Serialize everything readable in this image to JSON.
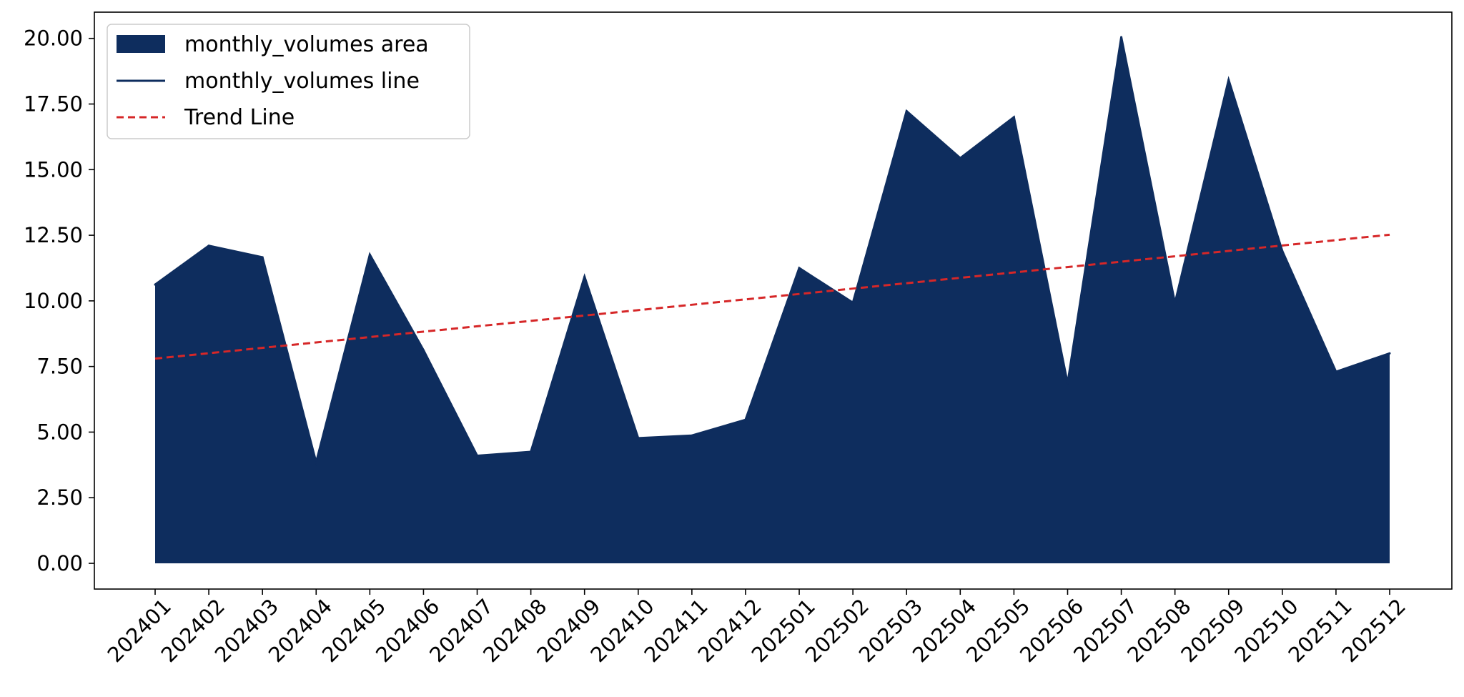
{
  "chart_data": {
    "type": "area",
    "categories": [
      "202401",
      "202402",
      "202403",
      "202404",
      "202405",
      "202406",
      "202407",
      "202408",
      "202409",
      "202410",
      "202411",
      "202412",
      "202501",
      "202502",
      "202503",
      "202504",
      "202505",
      "202506",
      "202507",
      "202508",
      "202509",
      "202510",
      "202511",
      "202512"
    ],
    "series": [
      {
        "name": "monthly_volumes area",
        "kind": "area",
        "color": "#0e2d5e",
        "values": [
          10.62,
          12.1,
          11.66,
          3.85,
          11.76,
          8.12,
          4.1,
          4.25,
          10.92,
          4.77,
          4.87,
          5.47,
          11.25,
          9.93,
          17.23,
          15.44,
          17.0,
          6.86,
          20.05,
          9.92,
          18.42,
          11.9,
          7.3,
          8.0
        ]
      },
      {
        "name": "monthly_volumes line",
        "kind": "line",
        "color": "#0e2d5e",
        "values": [
          10.62,
          12.1,
          11.66,
          3.85,
          11.76,
          8.12,
          4.1,
          4.25,
          10.92,
          4.77,
          4.87,
          5.47,
          11.25,
          9.93,
          17.23,
          15.44,
          17.0,
          6.86,
          20.05,
          9.92,
          18.42,
          11.9,
          7.3,
          8.0
        ]
      },
      {
        "name": "Trend Line",
        "kind": "dashed-line",
        "color": "#d62728",
        "start": 7.8,
        "end": 12.52
      }
    ],
    "y_ticks": [
      "0.00",
      "2.50",
      "5.00",
      "7.50",
      "10.00",
      "12.50",
      "15.00",
      "17.50",
      "20.00"
    ],
    "ylim": [
      -0.98,
      21.0
    ],
    "title": "",
    "xlabel": "",
    "ylabel": "",
    "grid": false,
    "legend_position": "top-left"
  }
}
